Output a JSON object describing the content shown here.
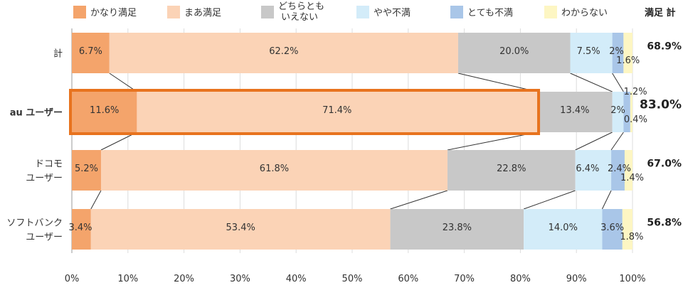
{
  "chart_data": {
    "type": "bar",
    "orientation": "horizontal",
    "stacked": true,
    "xlim": [
      0,
      100
    ],
    "x_ticks": [
      "0%",
      "10%",
      "20%",
      "30%",
      "40%",
      "50%",
      "60%",
      "70%",
      "80%",
      "90%",
      "100%"
    ],
    "grid": true,
    "legend_position": "top",
    "categories": [
      {
        "label_lines": [
          "計"
        ],
        "highlight": false,
        "total": "68.9%"
      },
      {
        "label_lines": [
          "au ユーザー"
        ],
        "highlight": true,
        "total": "83.0%"
      },
      {
        "label_lines": [
          "ドコモ",
          "ユーザー"
        ],
        "highlight": false,
        "total": "67.0%"
      },
      {
        "label_lines": [
          "ソフトバンク",
          "ユーザー"
        ],
        "highlight": false,
        "total": "56.8%"
      }
    ],
    "series": [
      {
        "name": "かなり満足",
        "color": "#f4a46b",
        "values": [
          6.7,
          11.6,
          5.2,
          3.4
        ],
        "labels": [
          "6.7%",
          "11.6%",
          "5.2%",
          "3.4%"
        ]
      },
      {
        "name": "まあ満足",
        "color": "#fbd3b6",
        "values": [
          62.2,
          71.4,
          61.8,
          53.4
        ],
        "labels": [
          "62.2%",
          "71.4%",
          "61.8%",
          "53.4%"
        ]
      },
      {
        "name": "どちらとも いえない",
        "color": "#c8c8c8",
        "values": [
          20.0,
          13.4,
          22.8,
          23.8
        ],
        "labels": [
          "20.0%",
          "13.4%",
          "22.8%",
          "23.8%"
        ]
      },
      {
        "name": "やや不満",
        "color": "#d3ecf9",
        "values": [
          7.5,
          2.0,
          6.4,
          14.0
        ],
        "labels": [
          "7.5%",
          "2%",
          "6.4%",
          "14.0%"
        ]
      },
      {
        "name": "とても不満",
        "color": "#a9c6e8",
        "values": [
          2.0,
          1.2,
          2.4,
          3.6
        ],
        "labels": [
          "2%",
          "1.2%",
          "2.4%",
          "3.6%"
        ]
      },
      {
        "name": "わからない",
        "color": "#fdf6c3",
        "values": [
          1.6,
          0.4,
          1.4,
          1.8
        ],
        "labels": [
          "1.6%",
          "0.4%",
          "1.4%",
          "1.8%"
        ]
      }
    ],
    "total_header": "満足 計",
    "highlight_color": "#e8731e"
  }
}
